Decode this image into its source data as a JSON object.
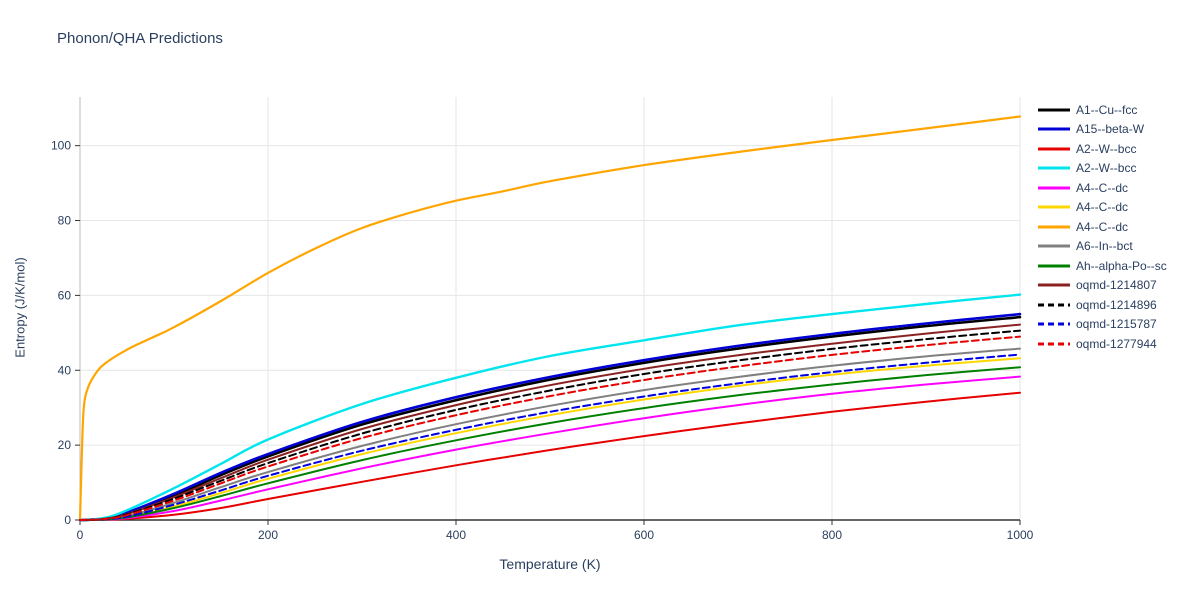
{
  "page": {
    "background": "#ffffff"
  },
  "chart_data": {
    "type": "line",
    "title": "Phonon/QHA Predictions",
    "xlabel": "Temperature (K)",
    "ylabel": "Entropy (J/K/mol)",
    "xlim": [
      0,
      1000
    ],
    "ylim": [
      0,
      113
    ],
    "xticks": [
      0,
      200,
      400,
      600,
      800,
      1000
    ],
    "yticks": [
      0,
      20,
      40,
      60,
      80,
      100
    ],
    "grid": true,
    "legend_position": "right",
    "text_color": "#2a3f5f",
    "grid_color": "#e6e6e6",
    "axis_color": "#333333",
    "series": [
      {
        "name": "A1--Cu--fcc",
        "color": "#000000",
        "dash": "solid",
        "width": 2.6,
        "points": [
          [
            0,
            0
          ],
          [
            25,
            0.3
          ],
          [
            50,
            1.8
          ],
          [
            100,
            6.5
          ],
          [
            150,
            12
          ],
          [
            200,
            17
          ],
          [
            300,
            25.5
          ],
          [
            400,
            32
          ],
          [
            500,
            37.5
          ],
          [
            600,
            42
          ],
          [
            700,
            45.8
          ],
          [
            800,
            49
          ],
          [
            900,
            51.8
          ],
          [
            1000,
            54.2
          ]
        ]
      },
      {
        "name": "A15--beta-W",
        "color": "#0000d5",
        "dash": "solid",
        "width": 2.6,
        "points": [
          [
            0,
            0
          ],
          [
            25,
            0.35
          ],
          [
            50,
            2.0
          ],
          [
            100,
            7.0
          ],
          [
            150,
            12.6
          ],
          [
            200,
            17.6
          ],
          [
            300,
            26.2
          ],
          [
            400,
            32.8
          ],
          [
            500,
            38.2
          ],
          [
            600,
            42.7
          ],
          [
            700,
            46.5
          ],
          [
            800,
            49.7
          ],
          [
            900,
            52.5
          ],
          [
            1000,
            55.0
          ]
        ]
      },
      {
        "name": "A2--W--bcc",
        "color": "#e60000",
        "dash": "solid",
        "width": 2,
        "points": [
          [
            0,
            0
          ],
          [
            25,
            0.05
          ],
          [
            50,
            0.3
          ],
          [
            100,
            1.4
          ],
          [
            150,
            3.2
          ],
          [
            200,
            5.6
          ],
          [
            300,
            10.2
          ],
          [
            400,
            14.6
          ],
          [
            500,
            18.7
          ],
          [
            600,
            22.4
          ],
          [
            700,
            25.8
          ],
          [
            800,
            28.9
          ],
          [
            900,
            31.6
          ],
          [
            1000,
            34.0
          ]
        ]
      },
      {
        "name": "A2--W--bcc",
        "color": "#00e5ee",
        "dash": "solid",
        "width": 2.4,
        "points": [
          [
            0,
            0
          ],
          [
            25,
            0.5
          ],
          [
            50,
            2.6
          ],
          [
            100,
            8.5
          ],
          [
            150,
            15
          ],
          [
            200,
            21.5
          ],
          [
            300,
            31
          ],
          [
            400,
            38
          ],
          [
            500,
            43.8
          ],
          [
            600,
            48
          ],
          [
            700,
            52
          ],
          [
            800,
            55
          ],
          [
            900,
            57.7
          ],
          [
            1000,
            60.2
          ]
        ]
      },
      {
        "name": "A4--C--dc",
        "color": "#ff00ff",
        "dash": "solid",
        "width": 2,
        "points": [
          [
            0,
            0
          ],
          [
            25,
            0.1
          ],
          [
            50,
            0.5
          ],
          [
            100,
            2.4
          ],
          [
            150,
            5.2
          ],
          [
            200,
            8.2
          ],
          [
            300,
            13.8
          ],
          [
            400,
            18.8
          ],
          [
            500,
            23.2
          ],
          [
            600,
            27.2
          ],
          [
            700,
            30.7
          ],
          [
            800,
            33.7
          ],
          [
            900,
            36.2
          ],
          [
            1000,
            38.3
          ]
        ]
      },
      {
        "name": "A4--C--dc",
        "color": "#ffd700",
        "dash": "solid",
        "width": 2,
        "points": [
          [
            0,
            0
          ],
          [
            25,
            0.2
          ],
          [
            50,
            0.8
          ],
          [
            100,
            3.6
          ],
          [
            150,
            7.2
          ],
          [
            200,
            11
          ],
          [
            300,
            17.6
          ],
          [
            400,
            23.2
          ],
          [
            500,
            28
          ],
          [
            600,
            32.2
          ],
          [
            700,
            35.8
          ],
          [
            800,
            38.8
          ],
          [
            900,
            41.2
          ],
          [
            1000,
            43.2
          ]
        ]
      },
      {
        "name": "A4--C--dc",
        "color": "#ffa500",
        "dash": "solid",
        "width": 2.2,
        "points": [
          [
            0,
            0
          ],
          [
            2,
            18
          ],
          [
            4,
            30
          ],
          [
            8,
            35
          ],
          [
            15,
            38.5
          ],
          [
            25,
            41.5
          ],
          [
            50,
            45.5
          ],
          [
            75,
            48.5
          ],
          [
            100,
            51.5
          ],
          [
            150,
            58.5
          ],
          [
            200,
            66
          ],
          [
            250,
            72.5
          ],
          [
            300,
            78
          ],
          [
            350,
            82
          ],
          [
            400,
            85.3
          ],
          [
            450,
            87.8
          ],
          [
            500,
            90.5
          ],
          [
            600,
            94.8
          ],
          [
            700,
            98.3
          ],
          [
            800,
            101.5
          ],
          [
            900,
            104.6
          ],
          [
            1000,
            107.8
          ]
        ]
      },
      {
        "name": "A6--In--bct",
        "color": "#808080",
        "dash": "solid",
        "width": 2,
        "points": [
          [
            0,
            0
          ],
          [
            25,
            0.15
          ],
          [
            50,
            1.0
          ],
          [
            100,
            4.6
          ],
          [
            150,
            8.8
          ],
          [
            200,
            12.8
          ],
          [
            300,
            19.8
          ],
          [
            400,
            25.6
          ],
          [
            500,
            30.5
          ],
          [
            600,
            34.7
          ],
          [
            700,
            38.2
          ],
          [
            800,
            41.2
          ],
          [
            900,
            43.7
          ],
          [
            1000,
            45.8
          ]
        ]
      },
      {
        "name": "Ah--alpha-Po--sc",
        "color": "#008000",
        "dash": "solid",
        "width": 2,
        "points": [
          [
            0,
            0
          ],
          [
            25,
            0.1
          ],
          [
            50,
            0.7
          ],
          [
            100,
            3.2
          ],
          [
            150,
            6.4
          ],
          [
            200,
            9.8
          ],
          [
            300,
            16
          ],
          [
            400,
            21.3
          ],
          [
            500,
            25.9
          ],
          [
            600,
            29.9
          ],
          [
            700,
            33.3
          ],
          [
            800,
            36.2
          ],
          [
            900,
            38.7
          ],
          [
            1000,
            40.8
          ]
        ]
      },
      {
        "name": "oqmd-1214807",
        "color": "#8b2222",
        "dash": "solid",
        "width": 2,
        "points": [
          [
            0,
            0
          ],
          [
            25,
            0.3
          ],
          [
            50,
            1.6
          ],
          [
            100,
            6.1
          ],
          [
            150,
            11.2
          ],
          [
            200,
            16.1
          ],
          [
            300,
            24.3
          ],
          [
            400,
            30.7
          ],
          [
            500,
            36
          ],
          [
            600,
            40.4
          ],
          [
            700,
            44
          ],
          [
            800,
            47.1
          ],
          [
            900,
            49.8
          ],
          [
            1000,
            52.2
          ]
        ]
      },
      {
        "name": "oqmd-1214896",
        "color": "#000000",
        "dash": "dash",
        "width": 2,
        "points": [
          [
            0,
            0
          ],
          [
            25,
            0.25
          ],
          [
            50,
            1.5
          ],
          [
            100,
            5.7
          ],
          [
            150,
            10.5
          ],
          [
            200,
            15.2
          ],
          [
            300,
            23.1
          ],
          [
            400,
            29.4
          ],
          [
            500,
            34.6
          ],
          [
            600,
            39
          ],
          [
            700,
            42.6
          ],
          [
            800,
            45.7
          ],
          [
            900,
            48.3
          ],
          [
            1000,
            50.6
          ]
        ]
      },
      {
        "name": "oqmd-1215787",
        "color": "#0000e0",
        "dash": "dash",
        "width": 2,
        "points": [
          [
            0,
            0
          ],
          [
            25,
            0.2
          ],
          [
            50,
            0.9
          ],
          [
            100,
            4.1
          ],
          [
            150,
            7.9
          ],
          [
            200,
            11.8
          ],
          [
            300,
            18.5
          ],
          [
            400,
            24.1
          ],
          [
            500,
            28.9
          ],
          [
            600,
            33
          ],
          [
            700,
            36.5
          ],
          [
            800,
            39.5
          ],
          [
            900,
            42
          ],
          [
            1000,
            44.2
          ]
        ]
      },
      {
        "name": "oqmd-1277944",
        "color": "#e60000",
        "dash": "dash",
        "width": 2,
        "points": [
          [
            0,
            0
          ],
          [
            25,
            0.25
          ],
          [
            50,
            1.3
          ],
          [
            100,
            5.2
          ],
          [
            150,
            9.8
          ],
          [
            200,
            14.3
          ],
          [
            300,
            21.9
          ],
          [
            400,
            28
          ],
          [
            500,
            33.1
          ],
          [
            600,
            37.4
          ],
          [
            700,
            41
          ],
          [
            800,
            44.1
          ],
          [
            900,
            46.7
          ],
          [
            1000,
            49.0
          ]
        ]
      }
    ]
  }
}
